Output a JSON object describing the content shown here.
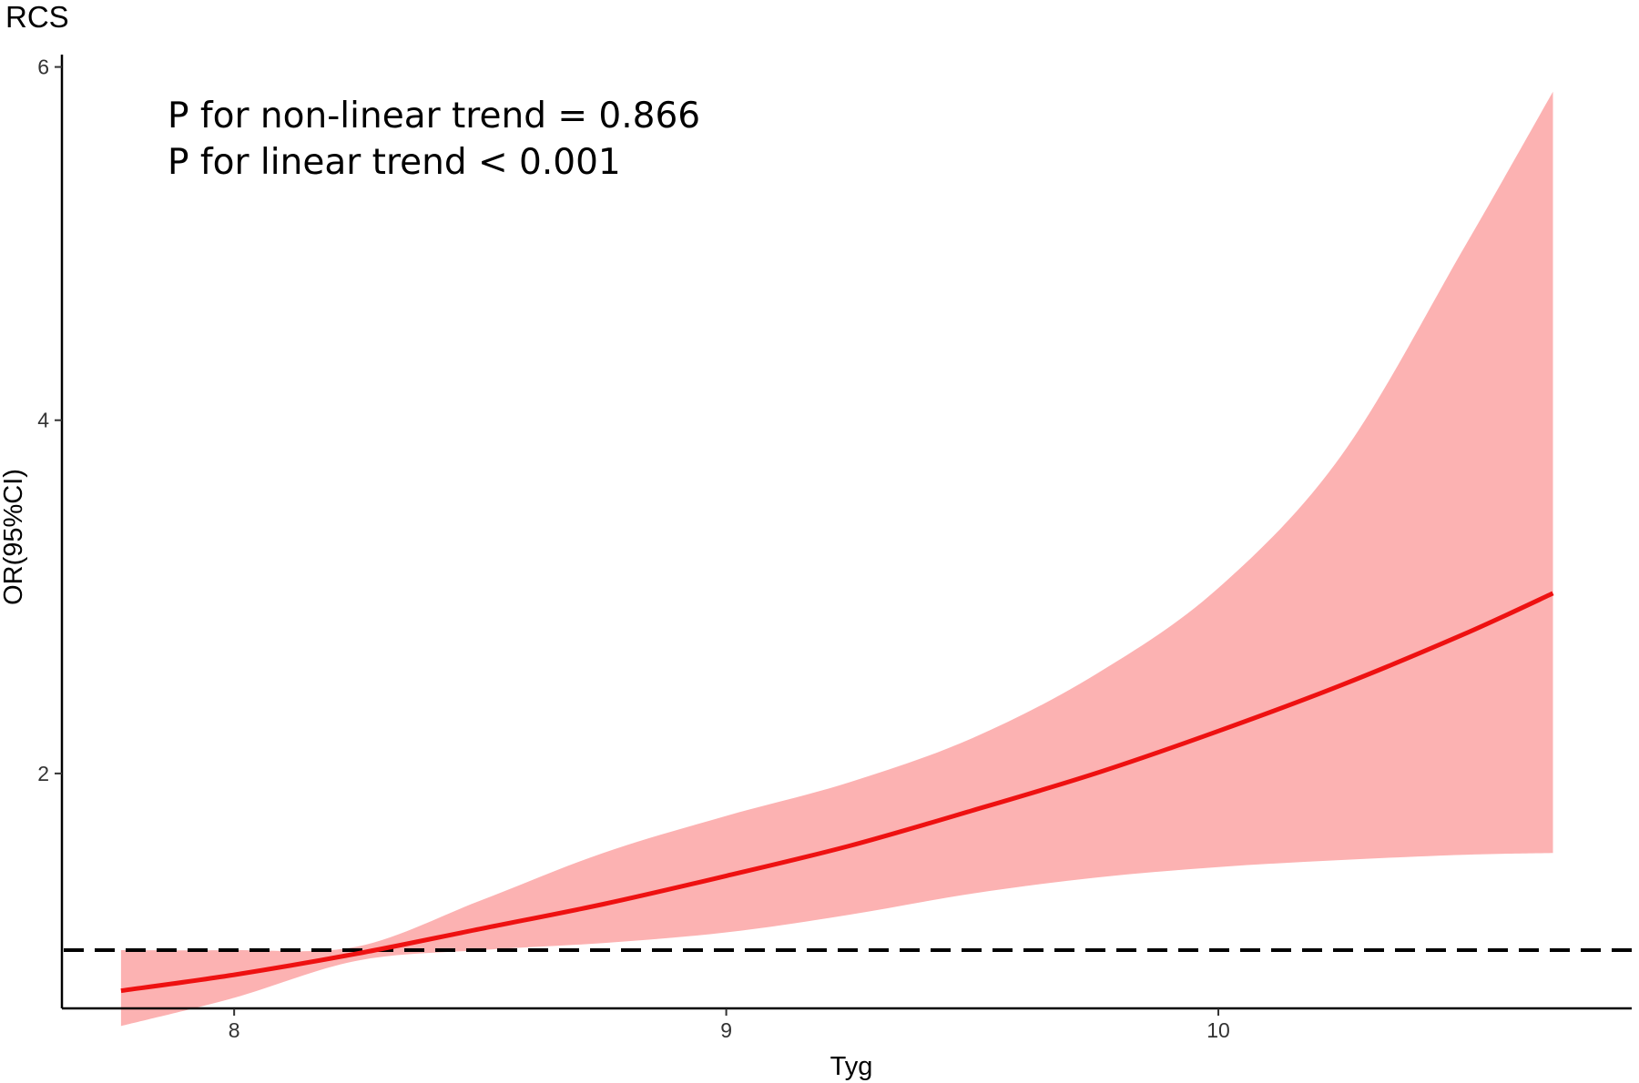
{
  "chart_data": {
    "type": "line",
    "title": "RCS",
    "xlabel": "Tyg",
    "ylabel": "OR(95%CI)",
    "xlim": [
      7.65,
      10.84
    ],
    "ylim": [
      0.67,
      6.07
    ],
    "xticks": [
      8,
      9,
      10
    ],
    "yticks": [
      2,
      4,
      6
    ],
    "grid": false,
    "reference_line": {
      "y": 1,
      "style": "dashed",
      "color": "#000000"
    },
    "annotations": [
      "P for non-linear trend = 0.866",
      "P for linear trend < 0.001"
    ],
    "x": [
      7.77,
      8.0,
      8.25,
      8.5,
      8.75,
      9.0,
      9.25,
      9.5,
      9.75,
      10.0,
      10.25,
      10.5,
      10.68
    ],
    "series": [
      {
        "y": [
          0.77,
          0.86,
          0.98,
          1.12,
          1.26,
          1.42,
          1.59,
          1.79,
          2.0,
          2.24,
          2.5,
          2.79,
          3.02
        ],
        "color": "#ee1111",
        "ci_lower": [
          0.57,
          0.73,
          0.94,
          1.0,
          1.04,
          1.1,
          1.2,
          1.32,
          1.41,
          1.47,
          1.51,
          1.54,
          1.55
        ],
        "ci_upper": [
          1.0,
          1.0,
          1.02,
          1.28,
          1.55,
          1.76,
          1.95,
          2.2,
          2.56,
          3.05,
          3.8,
          4.98,
          5.86
        ],
        "ci_color": "#fcb2b2"
      }
    ]
  }
}
